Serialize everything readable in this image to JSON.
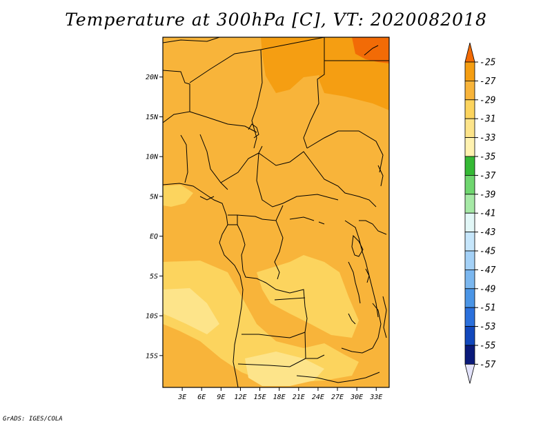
{
  "title": "Temperature at 300hPa [C], VT: 2020082018",
  "credit": "GrADS: IGES/COLA",
  "map": {
    "lon_range": [
      0,
      35
    ],
    "lat_range": [
      -19,
      25
    ],
    "lon_ticks": [
      {
        "value": 3,
        "label": "3E"
      },
      {
        "value": 6,
        "label": "6E"
      },
      {
        "value": 9,
        "label": "9E"
      },
      {
        "value": 12,
        "label": "12E"
      },
      {
        "value": 15,
        "label": "15E"
      },
      {
        "value": 18,
        "label": "18E"
      },
      {
        "value": 21,
        "label": "21E"
      },
      {
        "value": 24,
        "label": "24E"
      },
      {
        "value": 27,
        "label": "27E"
      },
      {
        "value": 30,
        "label": "30E"
      },
      {
        "value": 33,
        "label": "33E"
      }
    ],
    "lat_ticks": [
      {
        "value": 20,
        "label": "20N"
      },
      {
        "value": 15,
        "label": "15N"
      },
      {
        "value": 10,
        "label": "10N"
      },
      {
        "value": 5,
        "label": "5N"
      },
      {
        "value": 0,
        "label": "EQ"
      },
      {
        "value": -5,
        "label": "5S"
      },
      {
        "value": -10,
        "label": "10S"
      },
      {
        "value": -15,
        "label": "15S"
      }
    ],
    "fill_colors": {
      "band_29_31": "#f8b43a",
      "band_27_29": "#f59e12",
      "band_25_27": "#f26b06",
      "band_31_33": "#fcd45e",
      "band_33_35": "#fde48a"
    }
  },
  "colorbar": {
    "labels": [
      "-25",
      "-27",
      "-29",
      "-31",
      "-33",
      "-35",
      "-37",
      "-39",
      "-41",
      "-43",
      "-45",
      "-47",
      "-49",
      "-51",
      "-53",
      "-55",
      "-57"
    ],
    "colors": [
      "#f26b06",
      "#f59e12",
      "#f8b43a",
      "#fcd45e",
      "#fde48a",
      "#fff2b0",
      "#35b935",
      "#6fd66f",
      "#a6e9a6",
      "#e2f7f7",
      "#c6e6fb",
      "#a4d1f7",
      "#7bb7ef",
      "#4b95e6",
      "#2b70dc",
      "#1248bc",
      "#0a1a7a",
      "#e3e3fb"
    ]
  }
}
